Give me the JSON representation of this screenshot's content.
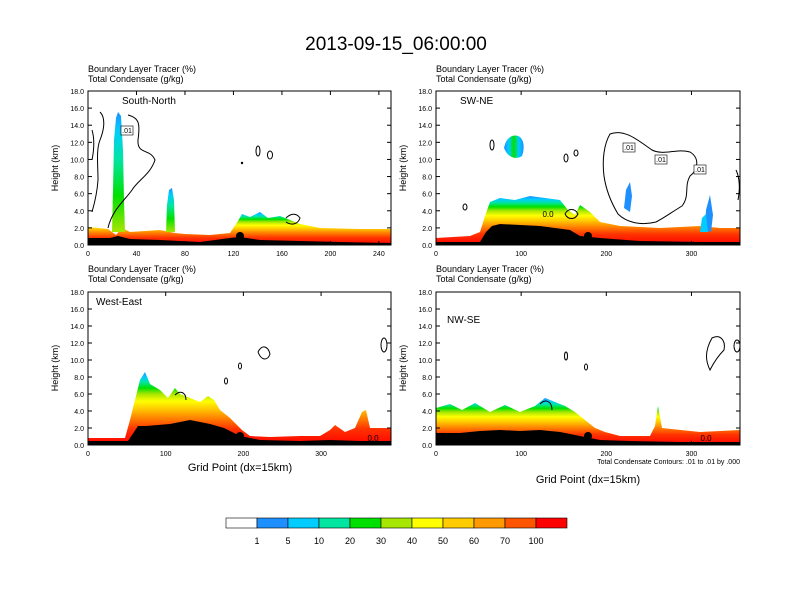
{
  "title": "2013-09-15_06:00:00",
  "y_axis": {
    "label": "Height (km)",
    "range": [
      0,
      18
    ],
    "ticks": [
      "0.0",
      "2.0",
      "4.0",
      "6.0",
      "8.0",
      "10.0",
      "12.0",
      "14.0",
      "16.0",
      "18.0"
    ]
  },
  "header_lines": [
    "Boundary Layer Tracer    (%)",
    "Total Condensate    (g/kg)"
  ],
  "panels": [
    {
      "name": "South-North",
      "xmax": 250,
      "xticks": [
        "0",
        "40",
        "80",
        "120",
        "160",
        "200",
        "240"
      ]
    },
    {
      "name": "SW-NE",
      "xmax": 357,
      "xticks": [
        "0",
        "100",
        "200",
        "300"
      ]
    },
    {
      "name": "West-East",
      "xmax": 390,
      "xticks": [
        "0",
        "100",
        "200",
        "300"
      ]
    },
    {
      "name": "NW-SE",
      "xmax": 357,
      "xticks": [
        "0",
        "100",
        "200",
        "300"
      ]
    }
  ],
  "x_label": "Grid Point (dx=15km)",
  "contour_note": "Total Condensate Contours: .01 to .01 by .000",
  "contour_labels": [
    ".01",
    ".01",
    ".01",
    ".01",
    "0.0",
    "0.0",
    "0.0"
  ],
  "colorbar": {
    "labels": [
      "1",
      "5",
      "10",
      "20",
      "30",
      "40",
      "50",
      "60",
      "70",
      "100"
    ],
    "colors": [
      "#ffffff",
      "#1e8fff",
      "#00ccff",
      "#00e5a0",
      "#00e000",
      "#a6e600",
      "#ffff00",
      "#ffcc00",
      "#ff9900",
      "#ff5500",
      "#ff0000"
    ]
  },
  "chart_data": [
    {
      "type": "heatmap",
      "title": "South-North",
      "ylabel": "Height (km)",
      "xlim": [
        0,
        250
      ],
      "ylim": [
        0,
        18
      ],
      "boundary_layer_top_km": [
        [
          0,
          1.8
        ],
        [
          20,
          1.8
        ],
        [
          25,
          15.0
        ],
        [
          35,
          1.8
        ],
        [
          65,
          2.2
        ],
        [
          72,
          6.5
        ],
        [
          78,
          2.0
        ],
        [
          120,
          2.2
        ],
        [
          135,
          3.2
        ],
        [
          150,
          2.6
        ],
        [
          170,
          2.4
        ],
        [
          200,
          2.0
        ],
        [
          250,
          1.8
        ]
      ],
      "terrain_km": [
        [
          0,
          0.7
        ],
        [
          25,
          0.8
        ],
        [
          60,
          0.6
        ],
        [
          100,
          0.4
        ],
        [
          130,
          0.7
        ],
        [
          160,
          0.5
        ],
        [
          200,
          0.4
        ],
        [
          250,
          0.3
        ]
      ]
    },
    {
      "type": "heatmap",
      "title": "SW-NE",
      "ylabel": "Height (km)",
      "xlim": [
        0,
        357
      ],
      "ylim": [
        0,
        18
      ],
      "boundary_layer_top_km": [
        [
          0,
          1.0
        ],
        [
          40,
          1.2
        ],
        [
          60,
          3.0
        ],
        [
          80,
          4.5
        ],
        [
          110,
          4.8
        ],
        [
          150,
          4.5
        ],
        [
          170,
          3.5
        ],
        [
          190,
          1.8
        ],
        [
          240,
          1.5
        ],
        [
          280,
          2.0
        ],
        [
          320,
          2.2
        ],
        [
          357,
          2.0
        ]
      ],
      "terrain_km": [
        [
          0,
          0.3
        ],
        [
          50,
          0.2
        ],
        [
          70,
          1.0
        ],
        [
          100,
          2.0
        ],
        [
          150,
          1.8
        ],
        [
          180,
          0.4
        ],
        [
          240,
          0.3
        ],
        [
          357,
          0.4
        ]
      ]
    },
    {
      "type": "heatmap",
      "title": "West-East",
      "ylabel": "Height (km)",
      "xlim": [
        0,
        390
      ],
      "ylim": [
        0,
        18
      ],
      "boundary_layer_top_km": [
        [
          0,
          0.8
        ],
        [
          50,
          1.0
        ],
        [
          60,
          4.5
        ],
        [
          75,
          8.0
        ],
        [
          90,
          6.0
        ],
        [
          120,
          6.5
        ],
        [
          160,
          4.0
        ],
        [
          190,
          1.5
        ],
        [
          230,
          0.8
        ],
        [
          300,
          0.8
        ],
        [
          330,
          2.0
        ],
        [
          355,
          4.0
        ],
        [
          390,
          2.0
        ]
      ],
      "terrain_km": [
        [
          0,
          0.4
        ],
        [
          55,
          0.5
        ],
        [
          70,
          2.5
        ],
        [
          100,
          2.0
        ],
        [
          130,
          2.6
        ],
        [
          160,
          2.5
        ],
        [
          190,
          1.2
        ],
        [
          230,
          0.6
        ],
        [
          330,
          0.5
        ],
        [
          390,
          0.6
        ]
      ]
    },
    {
      "type": "heatmap",
      "title": "NW-SE",
      "ylabel": "Height (km)",
      "xlim": [
        0,
        357
      ],
      "ylim": [
        0,
        18
      ],
      "boundary_layer_top_km": [
        [
          0,
          4.5
        ],
        [
          40,
          3.8
        ],
        [
          80,
          4.2
        ],
        [
          120,
          4.5
        ],
        [
          150,
          5.0
        ],
        [
          180,
          2.5
        ],
        [
          210,
          1.2
        ],
        [
          260,
          1.5
        ],
        [
          300,
          1.5
        ],
        [
          357,
          1.5
        ]
      ],
      "terrain_km": [
        [
          0,
          1.3
        ],
        [
          40,
          1.5
        ],
        [
          90,
          1.2
        ],
        [
          140,
          1.2
        ],
        [
          180,
          0.5
        ],
        [
          210,
          0.3
        ],
        [
          260,
          0.2
        ],
        [
          357,
          0.2
        ]
      ]
    }
  ]
}
